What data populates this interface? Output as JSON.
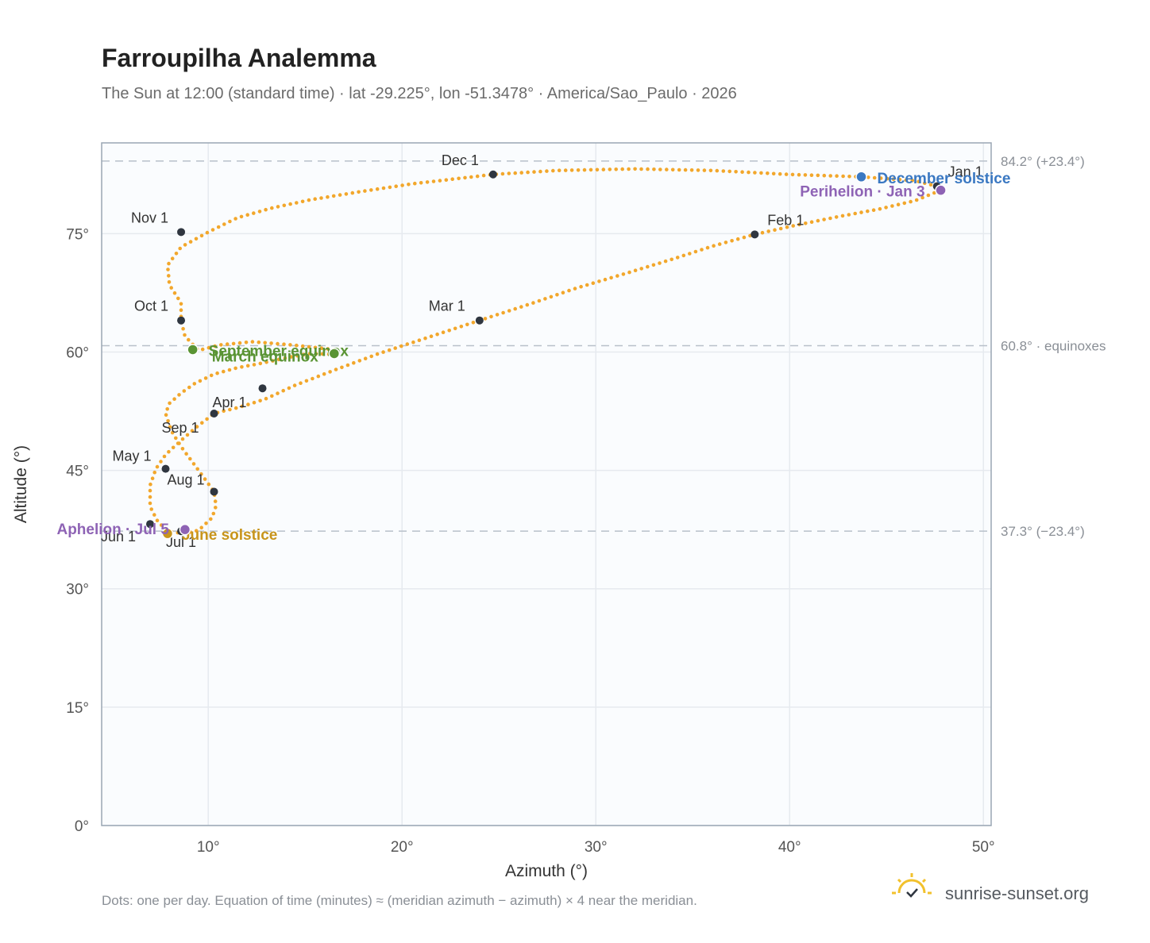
{
  "chart_data": {
    "type": "scatter",
    "title": "Farroupilha Analemma",
    "subtitle": "The Sun at 12:00 (standard time) · lat -29.225°, lon -51.3478° · America/Sao_Paulo · 2026",
    "xlabel": "Azimuth (°)",
    "ylabel": "Altitude (°)",
    "xlim": [
      4.5,
      50.4
    ],
    "ylim": [
      0,
      86.5
    ],
    "x_ticks": [
      10,
      20,
      30,
      40,
      50
    ],
    "x_tick_labels": [
      "10°",
      "20°",
      "30°",
      "40°",
      "50°"
    ],
    "y_ticks": [
      0,
      15,
      30,
      45,
      60,
      75
    ],
    "y_tick_labels": [
      "0°",
      "15°",
      "30°",
      "45°",
      "60°",
      "75°"
    ],
    "grid": true,
    "series": [
      {
        "x": [
          47.6,
          47.8,
          46.5,
          44.6,
          42.4,
          40.2,
          38.2,
          36.0,
          34.0,
          31.6,
          29.0,
          26.5,
          24.0,
          21.4,
          18.8,
          16.5,
          14.5,
          12.9,
          11.6,
          10.6,
          10.3,
          9.4,
          8.6,
          7.8,
          7.3,
          7.0,
          7.0,
          7.4,
          7.9,
          8.7,
          9.5,
          10.2,
          10.4,
          10.3,
          9.8,
          9.2,
          8.6,
          8.1,
          7.8,
          8.0,
          8.6,
          9.3,
          10.3,
          11.5,
          12.8,
          14.1,
          15.2,
          16.6,
          16.5,
          14.3,
          12.3,
          10.6,
          9.5,
          8.8,
          8.6,
          8.6,
          8.0,
          7.9,
          8.6,
          10.0,
          11.5,
          13.2,
          15.3,
          17.8,
          20.5,
          24.7,
          28.0,
          32.0,
          36.0,
          40.0,
          43.7,
          46.5,
          47.6
        ],
        "y": [
          81.0,
          80.5,
          79.2,
          78.1,
          77.1,
          76.0,
          74.9,
          73.4,
          71.8,
          70.0,
          68.1,
          66.0,
          64.0,
          61.9,
          59.8,
          57.7,
          55.8,
          54.0,
          53.0,
          52.4,
          52.2,
          50.5,
          48.8,
          47.0,
          45.2,
          43.1,
          40.4,
          38.5,
          37.3,
          37.0,
          37.4,
          39.0,
          40.5,
          42.3,
          44.0,
          46.0,
          48.0,
          50.0,
          52.2,
          53.5,
          54.8,
          56.0,
          57.2,
          58.0,
          58.6,
          59.3,
          59.8,
          59.7,
          60.3,
          60.9,
          61.3,
          60.9,
          60.2,
          62.0,
          64.0,
          66.2,
          68.5,
          71.0,
          73.3,
          75.2,
          77.0,
          78.2,
          79.3,
          80.3,
          81.3,
          82.5,
          83.0,
          83.2,
          83.0,
          82.5,
          82.2,
          81.7,
          81.0
        ]
      }
    ],
    "month_markers": [
      {
        "label": "Jan 1",
        "x": 47.6,
        "y": 81.0
      },
      {
        "label": "Feb 1",
        "x": 38.2,
        "y": 74.9
      },
      {
        "label": "Mar 1",
        "x": 24.0,
        "y": 64.0
      },
      {
        "label": "Apr 1",
        "x": 10.3,
        "y": 52.2
      },
      {
        "label": "May 1",
        "x": 7.8,
        "y": 45.2
      },
      {
        "label": "Jun 1",
        "x": 7.0,
        "y": 38.2
      },
      {
        "label": "Jul 1",
        "x": 8.6,
        "y": 37.3
      },
      {
        "label": "Aug 1",
        "x": 10.3,
        "y": 42.3
      },
      {
        "label": "Sep 1",
        "x": 12.8,
        "y": 55.4
      },
      {
        "label": "Oct 1",
        "x": 8.6,
        "y": 64.0
      },
      {
        "label": "Nov 1",
        "x": 8.6,
        "y": 75.2
      },
      {
        "label": "Dec 1",
        "x": 24.7,
        "y": 82.5
      }
    ],
    "events": [
      {
        "label": "December solstice",
        "x": 43.7,
        "y": 82.2,
        "color": "#3a78c2"
      },
      {
        "label": "Perihelion · Jan 3",
        "x": 47.8,
        "y": 80.5,
        "color": "#8e63b5"
      },
      {
        "label": "September equinox",
        "x": 9.2,
        "y": 60.3,
        "color": "#5a9434"
      },
      {
        "label": "March equinox",
        "x": 16.5,
        "y": 59.8,
        "color": "#5a9434"
      },
      {
        "label": "June solstice",
        "x": 7.9,
        "y": 37.0,
        "color": "#c8951c"
      },
      {
        "label": "Aphelion · Jul 5",
        "x": 8.8,
        "y": 37.5,
        "color": "#8e63b5"
      }
    ],
    "reference_lines": [
      {
        "y": 84.2,
        "label": "84.2° (+23.4°)"
      },
      {
        "y": 60.8,
        "label": "60.8° · equinoxes"
      },
      {
        "y": 37.3,
        "label": "37.3° (−23.4°)"
      }
    ],
    "colors": {
      "analemma": "#f2a72c",
      "marker": "#2f3640",
      "grid": "#e6eaef",
      "plot_bg": "#fafcfe",
      "frame": "#9aa6b4",
      "reference": "#b8c0ca"
    }
  },
  "footnote": "Dots: one per day. Equation of time (minutes) ≈ (meridian azimuth − azimuth) × 4 near the meridian.",
  "brand": {
    "name": "sunrise-sunset.org",
    "icon": "sun-icon"
  }
}
